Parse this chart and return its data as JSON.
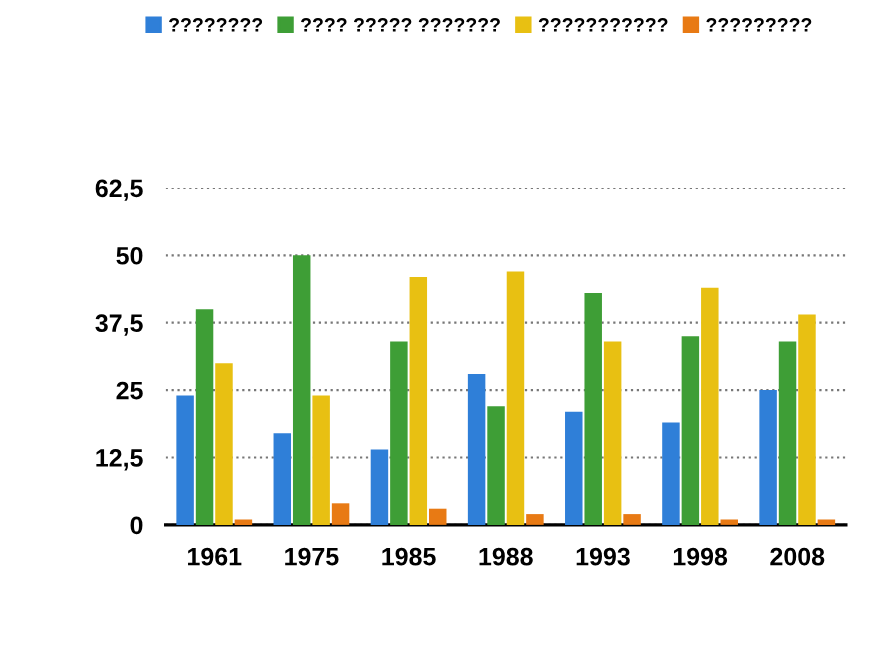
{
  "chart_data": {
    "type": "bar",
    "categories": [
      "1961",
      "1975",
      "1985",
      "1988",
      "1993",
      "1998",
      "2008"
    ],
    "series": [
      {
        "name": "????????",
        "color": "#2f7fd8",
        "values": [
          24,
          17,
          14,
          28,
          21,
          19,
          25
        ]
      },
      {
        "name": "???? ????? ???????",
        "color": "#3e9e36",
        "values": [
          40,
          50,
          34,
          22,
          43,
          35,
          34
        ]
      },
      {
        "name": "???????????",
        "color": "#e8c012",
        "values": [
          30,
          24,
          46,
          47,
          34,
          44,
          39
        ]
      },
      {
        "name": "?????????",
        "color": "#e87a14",
        "values": [
          1,
          4,
          3,
          2,
          2,
          1,
          1
        ]
      }
    ],
    "ylim": [
      0,
      62.5
    ],
    "yticks": [
      0,
      {
        "value": 12.5,
        "label": "12,5"
      },
      25,
      {
        "value": 37.5,
        "label": "37,5"
      },
      50,
      {
        "value": 62.5,
        "label": "62,5"
      }
    ],
    "grid": "y",
    "legend": "top"
  }
}
